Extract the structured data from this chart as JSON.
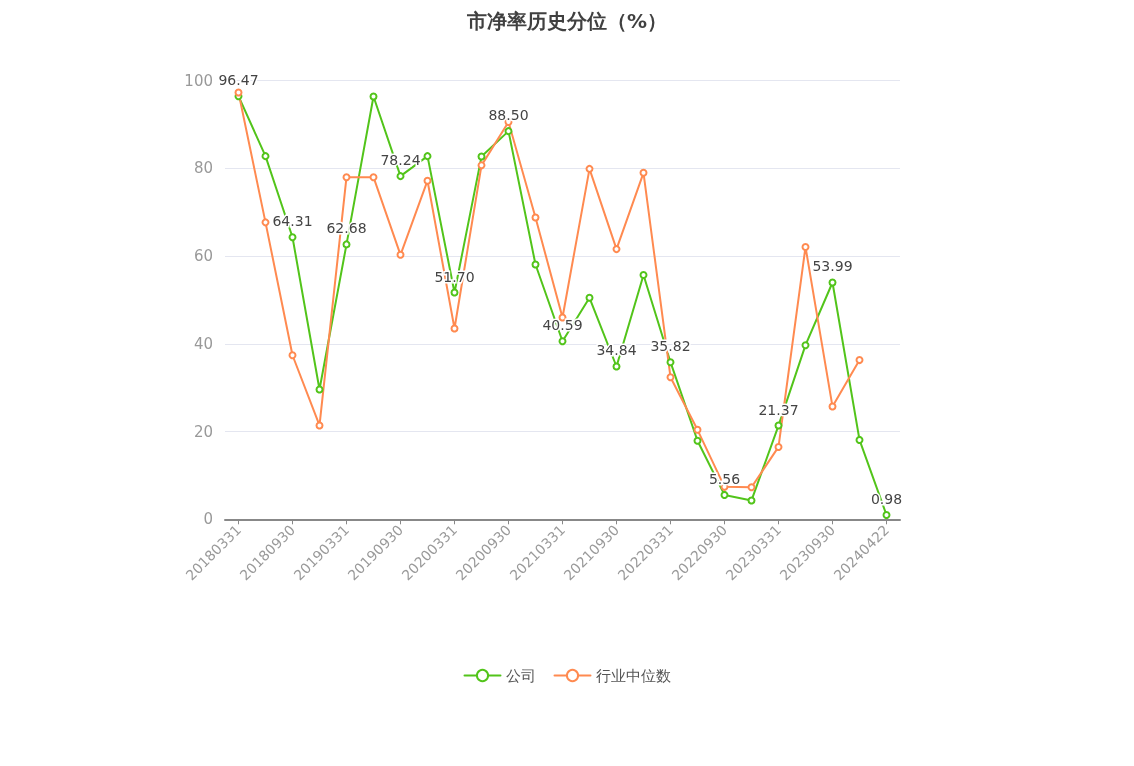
{
  "chart_data": {
    "type": "line",
    "title": "市净率历史分位（%）",
    "categories": [
      "20180331",
      null,
      "20180930",
      null,
      "20190331",
      null,
      "20190930",
      null,
      "20200331",
      null,
      "20200930",
      null,
      "20210331",
      null,
      "20210930",
      null,
      "20220331",
      null,
      "20220930",
      null,
      "20230331",
      null,
      "20230930",
      null,
      "20240422"
    ],
    "series": [
      {
        "name": "公司",
        "color": "#52c41a",
        "values": [
          96.47,
          82.8,
          64.31,
          29.6,
          62.68,
          96.4,
          78.24,
          82.8,
          51.7,
          82.7,
          88.5,
          58.1,
          40.59,
          50.5,
          34.84,
          55.7,
          35.82,
          17.9,
          5.56,
          4.3,
          21.37,
          39.7,
          53.99,
          18.1,
          0.98
        ],
        "value_labels": [
          "96.47",
          null,
          "64.31",
          null,
          "62.68",
          null,
          "78.24",
          null,
          "51.70",
          null,
          "88.50",
          null,
          "40.59",
          null,
          "34.84",
          null,
          "35.82",
          null,
          "5.56",
          null,
          "21.37",
          null,
          "53.99",
          null,
          "0.98"
        ]
      },
      {
        "name": "行业中位数",
        "color": "#ff8a50",
        "values": [
          97.3,
          67.7,
          37.4,
          21.4,
          78.0,
          78.0,
          60.3,
          77.2,
          43.5,
          80.7,
          90.6,
          68.8,
          46.0,
          79.9,
          61.6,
          79.0,
          32.4,
          20.4,
          7.4,
          7.3,
          16.5,
          62.1,
          25.7,
          36.3,
          null
        ]
      }
    ],
    "ylim": [
      0,
      100
    ],
    "yticks": [
      0,
      20,
      40,
      60,
      80,
      100
    ],
    "grid": "y",
    "legend": "bottom",
    "marker": "circle",
    "line_style": "solid"
  }
}
